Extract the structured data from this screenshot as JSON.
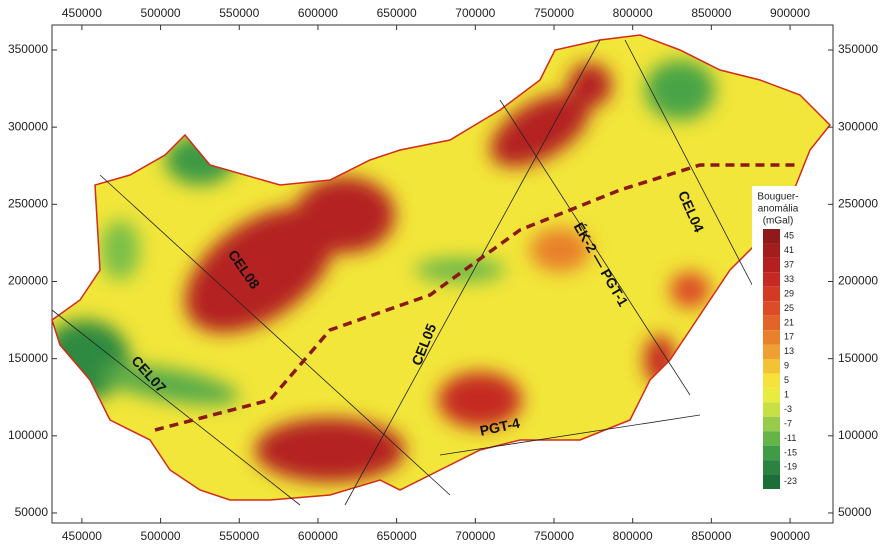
{
  "map": {
    "xlim": [
      431000,
      927300
    ],
    "ylim": [
      43500,
      366200
    ],
    "xticks": [
      450000,
      500000,
      550000,
      600000,
      650000,
      700000,
      750000,
      800000,
      850000,
      900000
    ],
    "yticks": [
      50000,
      100000,
      150000,
      200000,
      250000,
      300000,
      350000
    ],
    "profiles": [
      "CEL08",
      "CEL07",
      "CEL05",
      "CEL04",
      "ÉK-2 — PGT-1",
      "PGT-4"
    ],
    "colorbar": {
      "title": [
        "Bouguer-",
        "anomália",
        "(mGal)"
      ],
      "clim": [
        -25,
        47
      ],
      "ticks": [
        45,
        41,
        37,
        33,
        29,
        25,
        21,
        17,
        13,
        9,
        5,
        1,
        -3,
        -7,
        -11,
        -15,
        -19,
        -23
      ],
      "colors": [
        "#8e1a1a",
        "#a21d1d",
        "#b42020",
        "#c52a22",
        "#d23a24",
        "#dc4c26",
        "#e26428",
        "#e8802c",
        "#eea032",
        "#f3c236",
        "#f6e23a",
        "#e8ec40",
        "#c6e046",
        "#96cc4a",
        "#64b44a",
        "#3f9c44",
        "#2a8440",
        "#1c6e38"
      ]
    }
  }
}
